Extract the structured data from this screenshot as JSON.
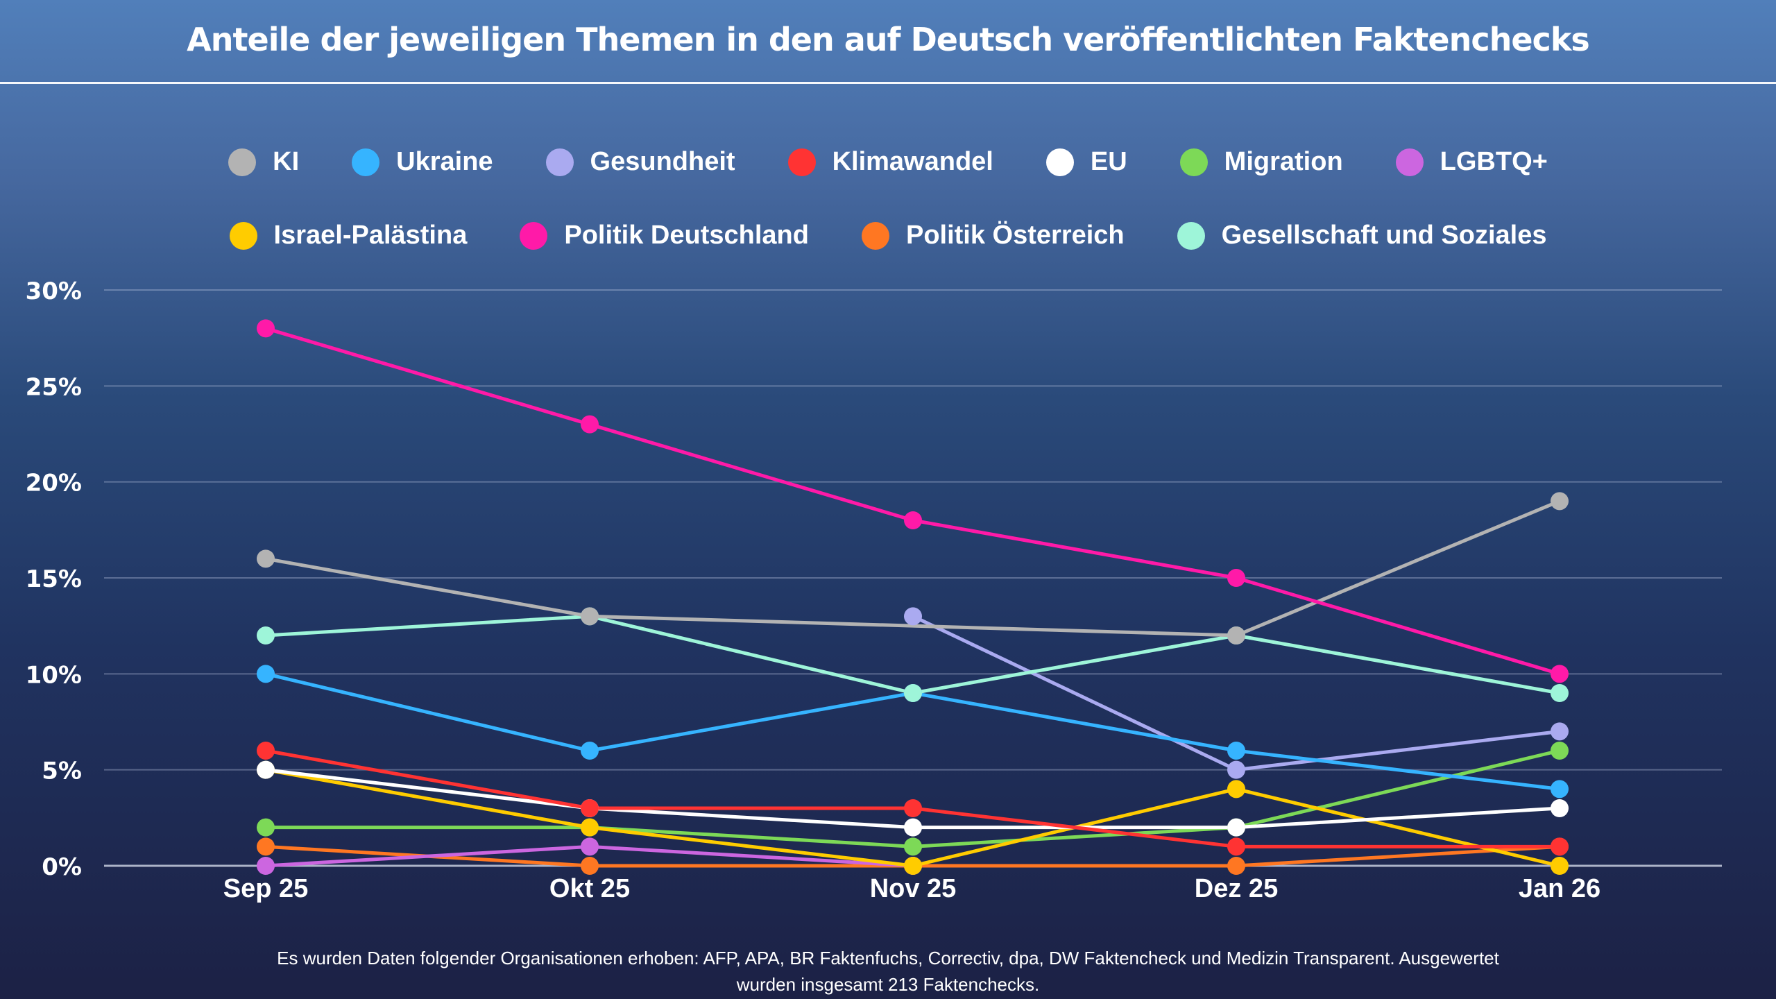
{
  "chart_data": {
    "type": "line",
    "title": "Anteile der jeweiligen Themen in den auf Deutsch veröffentlichten Faktenchecks",
    "xlabel": "",
    "ylabel": "",
    "categories": [
      "Sep 25",
      "Okt 25",
      "Nov 25",
      "Dez 25",
      "Jan 26"
    ],
    "ylim": [
      0,
      30
    ],
    "yticks": [
      0,
      5,
      10,
      15,
      20,
      25,
      30
    ],
    "ytick_labels": [
      "0%",
      "5%",
      "10%",
      "15%",
      "20%",
      "25%",
      "30%"
    ],
    "grid": true,
    "legend_position": "top-center",
    "series": [
      {
        "name": "KI",
        "color": "#b3b3b3",
        "values": [
          16,
          13,
          null,
          12,
          19
        ]
      },
      {
        "name": "Ukraine",
        "color": "#36b4ff",
        "values": [
          10,
          6,
          9,
          6,
          4
        ]
      },
      {
        "name": "Gesundheit",
        "color": "#aaaaf0",
        "values": [
          null,
          null,
          13,
          5,
          7
        ]
      },
      {
        "name": "Klimawandel",
        "color": "#ff3333",
        "values": [
          6,
          3,
          3,
          1,
          1
        ]
      },
      {
        "name": "EU",
        "color": "#ffffff",
        "values": [
          5,
          3,
          2,
          2,
          3
        ]
      },
      {
        "name": "Migration",
        "color": "#7dd957",
        "values": [
          2,
          2,
          1,
          2,
          6
        ]
      },
      {
        "name": "LGBTQ+",
        "color": "#cc66e0",
        "values": [
          0,
          1,
          0,
          null,
          null
        ]
      },
      {
        "name": "Israel-Palästina",
        "color": "#ffcc00",
        "values": [
          5,
          2,
          0,
          4,
          0
        ]
      },
      {
        "name": "Politik Deutschland",
        "color": "#ff1aa8",
        "values": [
          28,
          23,
          18,
          15,
          10
        ]
      },
      {
        "name": "Politik Österreich",
        "color": "#ff7722",
        "values": [
          1,
          0,
          0,
          0,
          1
        ]
      },
      {
        "name": "Gesellschaft und Soziales",
        "color": "#9ef5d9",
        "values": [
          12,
          13,
          9,
          12,
          9
        ]
      }
    ],
    "draw_order": [
      "Politik Österreich",
      "LGBTQ+",
      "Migration",
      "Israel-Palästina",
      "EU",
      "Klimawandel",
      "Gesundheit",
      "Ukraine",
      "Gesellschaft und Soziales",
      "KI",
      "Politik Deutschland"
    ],
    "footnote": "Es wurden Daten folgender Organisationen erhoben: AFP, APA, BR Faktenfuchs, Correctiv, dpa, DW Faktencheck und Medizin Transparent. Ausgewertet wurden insgesamt 213 Faktenchecks."
  },
  "legend": {
    "row1": [
      {
        "label": "KI",
        "color": "#b3b3b3"
      },
      {
        "label": "Ukraine",
        "color": "#36b4ff"
      },
      {
        "label": "Gesundheit",
        "color": "#aaaaf0"
      },
      {
        "label": "Klimawandel",
        "color": "#ff3333"
      },
      {
        "label": "EU",
        "color": "#ffffff"
      },
      {
        "label": "Migration",
        "color": "#7dd957"
      },
      {
        "label": "LGBTQ+",
        "color": "#cc66e0"
      }
    ],
    "row2": [
      {
        "label": "Israel-Palästina",
        "color": "#ffcc00"
      },
      {
        "label": "Politik Deutschland",
        "color": "#ff1aa8"
      },
      {
        "label": "Politik Österreich",
        "color": "#ff7722"
      },
      {
        "label": "Gesellschaft und Soziales",
        "color": "#9ef5d9"
      }
    ]
  },
  "footer": {
    "line1": "Es wurden Daten folgender Organisationen erhoben: AFP, APA, BR Faktenfuchs, Correctiv, dpa, DW Faktencheck und Medizin Transparent. Ausgewertet",
    "line2": "wurden insgesamt 213 Faktenchecks."
  }
}
